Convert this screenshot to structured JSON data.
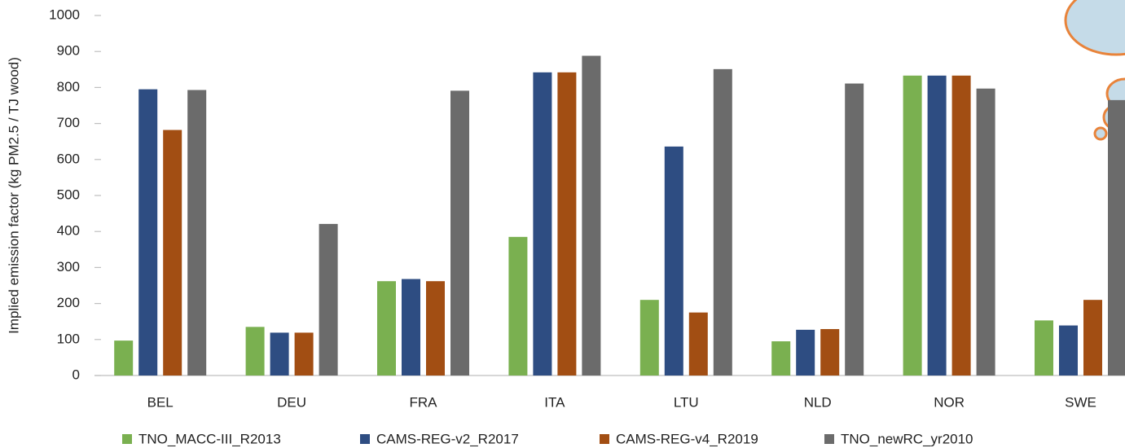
{
  "chart_data": {
    "type": "bar",
    "y_label": "Implied emission factor (kg PM2.5 / TJ wood)",
    "categories": [
      "BEL",
      "DEU",
      "FRA",
      "ITA",
      "LTU",
      "NLD",
      "NOR",
      "SWE"
    ],
    "series": [
      {
        "name": "TNO_MACC-III_R2013",
        "color": "#7ab050",
        "values": [
          97,
          135,
          262,
          385,
          210,
          95,
          833,
          153
        ]
      },
      {
        "name": "CAMS-REG-v2_R2017",
        "color": "#2e4d82",
        "values": [
          795,
          119,
          268,
          842,
          636,
          127,
          833,
          139
        ]
      },
      {
        "name": "CAMS-REG-v4_R2019",
        "color": "#a24e13",
        "values": [
          682,
          119,
          262,
          842,
          175,
          129,
          833,
          210
        ]
      },
      {
        "name": "TNO_newRC_yr2010",
        "color": "#6b6b6b",
        "values": [
          793,
          421,
          791,
          888,
          851,
          811,
          797,
          765
        ]
      }
    ],
    "ylim": [
      0,
      1000
    ],
    "yticks": [
      0,
      100,
      200,
      300,
      400,
      500,
      600,
      700,
      800,
      900,
      1000
    ],
    "grid": false
  }
}
